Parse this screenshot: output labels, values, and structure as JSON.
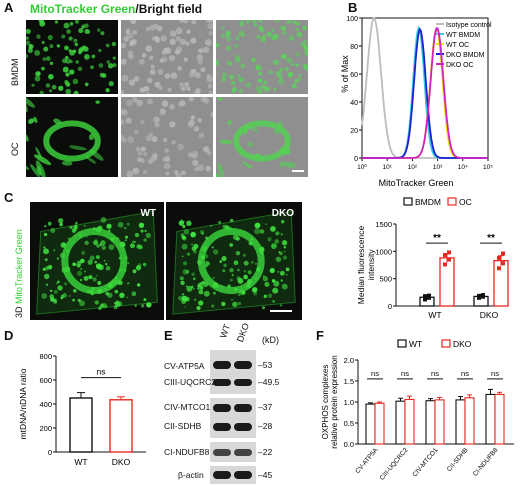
{
  "panels": {
    "A": {
      "letter": "A",
      "title_green": "MitoTracker Green",
      "title_rest": "/Bright field",
      "row_labels": [
        "BMDM",
        "OC"
      ]
    },
    "B": {
      "letter": "B"
    },
    "C": {
      "letter": "C",
      "img_labels": [
        "WT",
        "DKO"
      ],
      "side_label_prefix": "3D",
      "side_label_green": "MitoTracker Green"
    },
    "D": {
      "letter": "D"
    },
    "E": {
      "letter": "E",
      "lanes": [
        "WT",
        "DKO"
      ],
      "unit": "(kD)",
      "proteins": [
        "CV-ATP5A",
        "CIII-UQCRC2",
        "CIV-MTCO1",
        "CII-SDHB",
        "CI-NDUFB8",
        "β-actin"
      ],
      "markers": [
        "53",
        "49.5",
        "37",
        "28",
        "22",
        "45"
      ]
    },
    "F": {
      "letter": "F"
    }
  },
  "colors": {
    "green": "#33cc33",
    "red": "#e8281e",
    "black": "#111111"
  },
  "chart_data": [
    {
      "id": "B",
      "type": "line",
      "xlabel": "MitoTracker Green",
      "ylabel": "% of Max",
      "x_scale": "log",
      "xlim": [
        1,
        100000
      ],
      "x_ticks": [
        "10⁰",
        "10¹",
        "10²",
        "10³",
        "10⁴",
        "10⁵"
      ],
      "ylim": [
        0,
        100
      ],
      "y_ticks": [
        0,
        20,
        40,
        60,
        80,
        100
      ],
      "legend": "top-right",
      "series": [
        {
          "name": "Isotype control",
          "color": "#bdbdbd",
          "peak_x": 3,
          "peak_y": 100,
          "width": 0.28
        },
        {
          "name": "WT BMDM",
          "color": "#33c8e0",
          "peak_x": 180,
          "peak_y": 93,
          "width": 0.22
        },
        {
          "name": "WT OC",
          "color": "#e8e020",
          "peak_x": 900,
          "peak_y": 92,
          "width": 0.24
        },
        {
          "name": "DKO BMDM",
          "color": "#2020d0",
          "peak_x": 200,
          "peak_y": 92,
          "width": 0.23
        },
        {
          "name": "DKO OC",
          "color": "#d020c8",
          "peak_x": 950,
          "peak_y": 93,
          "width": 0.25
        }
      ]
    },
    {
      "id": "C",
      "type": "bar",
      "ylabel": "Median fluorescence intensity",
      "categories": [
        "WT",
        "DKO"
      ],
      "ylim": [
        0,
        1500
      ],
      "y_ticks": [
        0,
        500,
        1000,
        1500
      ],
      "legend": "top",
      "series": [
        {
          "name": "BMDM",
          "color": "#111111",
          "values": [
            160,
            175
          ],
          "err": [
            25,
            20
          ],
          "points": [
            [
              120,
              150,
              180,
              190
            ],
            [
              150,
              170,
              185,
              200
            ]
          ]
        },
        {
          "name": "OC",
          "color": "#e8281e",
          "values": [
            880,
            830
          ],
          "err": [
            80,
            90
          ],
          "points": [
            [
              760,
              850,
              930,
              980
            ],
            [
              690,
              780,
              880,
              960
            ]
          ]
        }
      ],
      "annotations": [
        "**",
        "**"
      ]
    },
    {
      "id": "D",
      "type": "bar",
      "ylabel": "mtDNA/nDNA ratio",
      "categories": [
        "WT",
        "DKO"
      ],
      "values": [
        450,
        435
      ],
      "err": [
        45,
        25
      ],
      "colors": [
        "#111111",
        "#e8281e"
      ],
      "ylim": [
        0,
        800
      ],
      "y_ticks": [
        0,
        200,
        400,
        600,
        800
      ],
      "annotations": [
        "ns"
      ]
    },
    {
      "id": "F",
      "type": "bar",
      "ylabel": "OXPHOS complexes relative protein expression",
      "categories": [
        "CV-ATP5A",
        "CIII-UQCRC2",
        "CIV-MTCO1",
        "CII-SDHB",
        "CI-NDUFB8"
      ],
      "ylim": [
        0,
        2.0
      ],
      "y_ticks": [
        "0.0",
        "0.5",
        "1.0",
        "1.5",
        "2.0"
      ],
      "legend": "top",
      "series": [
        {
          "name": "WT",
          "color": "#111111",
          "values": [
            0.95,
            1.02,
            1.03,
            1.05,
            1.18
          ],
          "err": [
            0.03,
            0.07,
            0.05,
            0.08,
            0.12
          ]
        },
        {
          "name": "DKO",
          "color": "#e8281e",
          "values": [
            0.97,
            1.06,
            1.05,
            1.1,
            1.18
          ],
          "err": [
            0.03,
            0.08,
            0.06,
            0.07,
            0.05
          ]
        }
      ],
      "annotations": [
        "ns",
        "ns",
        "ns",
        "ns",
        "ns"
      ]
    }
  ]
}
